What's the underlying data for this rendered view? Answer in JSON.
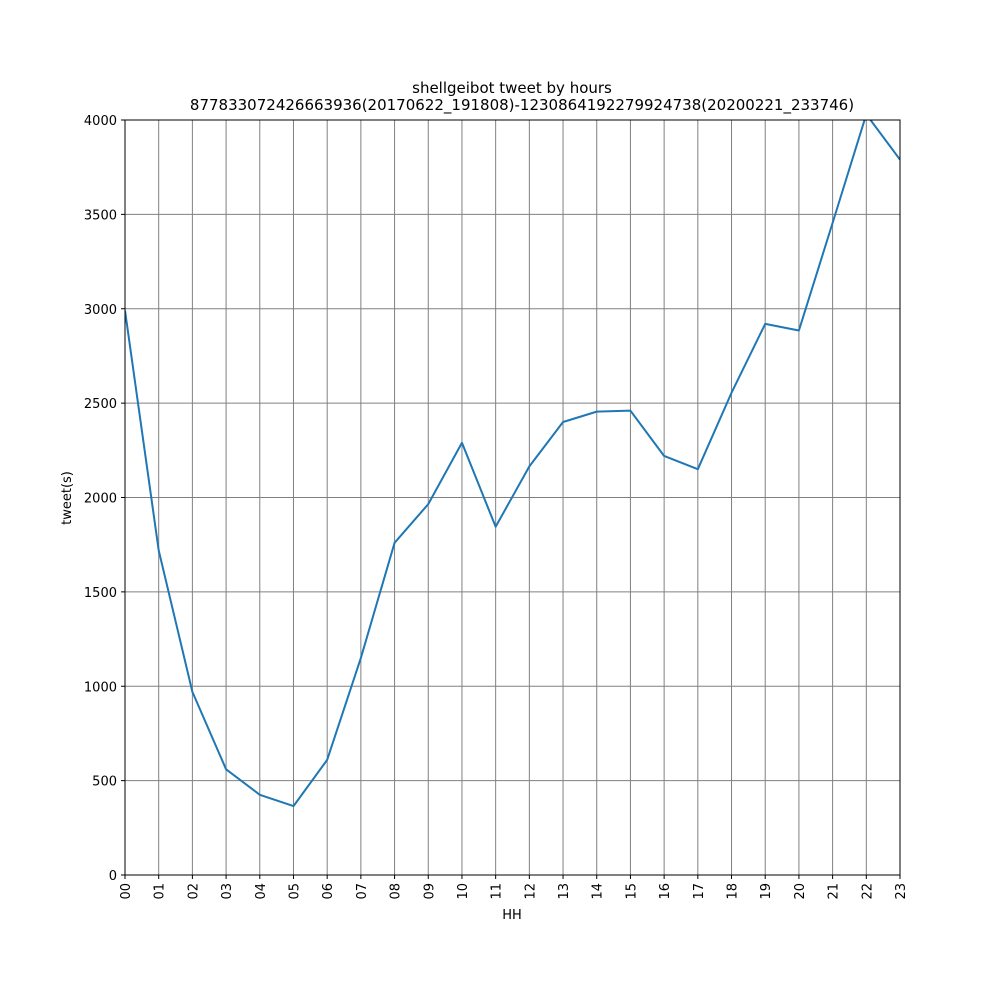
{
  "chart_data": {
    "type": "line",
    "title": "shellgeibot tweet by hours",
    "subtitle": "877833072426663936(20170622_191808)-1230864192279924738(20200221_233746)",
    "xlabel": "HH",
    "ylabel": "tweet(s)",
    "categories": [
      "00",
      "01",
      "02",
      "03",
      "04",
      "05",
      "06",
      "07",
      "08",
      "09",
      "10",
      "11",
      "12",
      "13",
      "14",
      "15",
      "16",
      "17",
      "18",
      "19",
      "20",
      "21",
      "22",
      "23"
    ],
    "values": [
      2990,
      1720,
      970,
      560,
      425,
      365,
      610,
      1150,
      1760,
      1965,
      2290,
      1845,
      2165,
      2400,
      2455,
      2460,
      2220,
      2150,
      2555,
      2920,
      2885,
      3455,
      4030,
      3790
    ],
    "ylim": [
      0,
      4000
    ],
    "yticks": [
      0,
      500,
      1000,
      1500,
      2000,
      2500,
      3000,
      3500,
      4000
    ],
    "grid": true,
    "line_color": "#1f77b4",
    "grid_color": "#808080"
  }
}
